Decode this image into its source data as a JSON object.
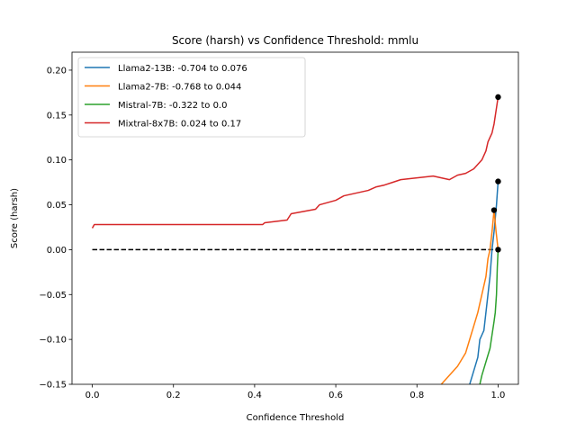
{
  "chart_data": {
    "type": "line",
    "title": "Score (harsh) vs Confidence Threshold: mmlu",
    "xlabel": "Confidence Threshold",
    "ylabel": "Score (harsh)",
    "xlim": [
      -0.05,
      1.05
    ],
    "ylim": [
      -0.15,
      0.22
    ],
    "xticks": [
      0.0,
      0.2,
      0.4,
      0.6,
      0.8,
      1.0
    ],
    "xtick_labels": [
      "0.0",
      "0.2",
      "0.4",
      "0.6",
      "0.8",
      "1.0"
    ],
    "yticks": [
      -0.15,
      -0.1,
      -0.05,
      0.0,
      0.05,
      0.1,
      0.15,
      0.2
    ],
    "ytick_labels": [
      "−0.15",
      "−0.10",
      "−0.05",
      "0.00",
      "0.05",
      "0.10",
      "0.15",
      "0.20"
    ],
    "grid": false,
    "legend_position": "top-left",
    "baseline": {
      "x": [
        0.0,
        1.0
      ],
      "y": 0.0,
      "style": "dashed",
      "color": "#000000"
    },
    "series": [
      {
        "name": "Llama2-13B: -0.704 to 0.076",
        "color": "#1f77b4",
        "x": [
          0.93,
          0.94,
          0.95,
          0.955,
          0.96,
          0.965,
          0.97,
          0.975,
          0.98,
          0.985,
          0.99,
          0.993,
          0.996,
          1.0
        ],
        "y": [
          -0.15,
          -0.135,
          -0.12,
          -0.1,
          -0.095,
          -0.09,
          -0.07,
          -0.05,
          -0.03,
          0.0,
          0.02,
          0.035,
          0.05,
          0.076
        ],
        "marker": {
          "x": 1.0,
          "y": 0.076
        }
      },
      {
        "name": "Llama2-7B: -0.768 to 0.044",
        "color": "#ff7f0e",
        "x": [
          0.86,
          0.88,
          0.9,
          0.92,
          0.93,
          0.94,
          0.95,
          0.96,
          0.97,
          0.975,
          0.98,
          0.985,
          0.99,
          0.995,
          1.0
        ],
        "y": [
          -0.15,
          -0.14,
          -0.13,
          -0.115,
          -0.1,
          -0.085,
          -0.07,
          -0.05,
          -0.03,
          -0.01,
          0.0,
          0.02,
          0.044,
          0.02,
          0.0
        ],
        "marker": {
          "x": 0.99,
          "y": 0.044
        }
      },
      {
        "name": "Mistral-7B: -0.322 to 0.0",
        "color": "#2ca02c",
        "x": [
          0.955,
          0.96,
          0.97,
          0.98,
          0.985,
          0.99,
          0.993,
          0.996,
          0.998,
          1.0
        ],
        "y": [
          -0.15,
          -0.14,
          -0.125,
          -0.11,
          -0.095,
          -0.08,
          -0.07,
          -0.05,
          -0.02,
          0.0
        ],
        "marker": {
          "x": 1.0,
          "y": 0.0
        }
      },
      {
        "name": "Mixtral-8x7B: 0.024 to 0.17",
        "color": "#d62728",
        "x": [
          0.0,
          0.005,
          0.42,
          0.425,
          0.48,
          0.49,
          0.55,
          0.56,
          0.6,
          0.62,
          0.65,
          0.68,
          0.7,
          0.72,
          0.74,
          0.76,
          0.8,
          0.84,
          0.86,
          0.88,
          0.9,
          0.92,
          0.94,
          0.95,
          0.96,
          0.97,
          0.975,
          0.98,
          0.985,
          0.99,
          0.995,
          1.0
        ],
        "y": [
          0.024,
          0.028,
          0.028,
          0.03,
          0.033,
          0.04,
          0.045,
          0.05,
          0.055,
          0.06,
          0.063,
          0.066,
          0.07,
          0.072,
          0.075,
          0.078,
          0.08,
          0.082,
          0.08,
          0.078,
          0.083,
          0.085,
          0.09,
          0.095,
          0.1,
          0.11,
          0.12,
          0.125,
          0.13,
          0.14,
          0.155,
          0.17
        ],
        "marker": {
          "x": 1.0,
          "y": 0.17
        }
      }
    ]
  }
}
